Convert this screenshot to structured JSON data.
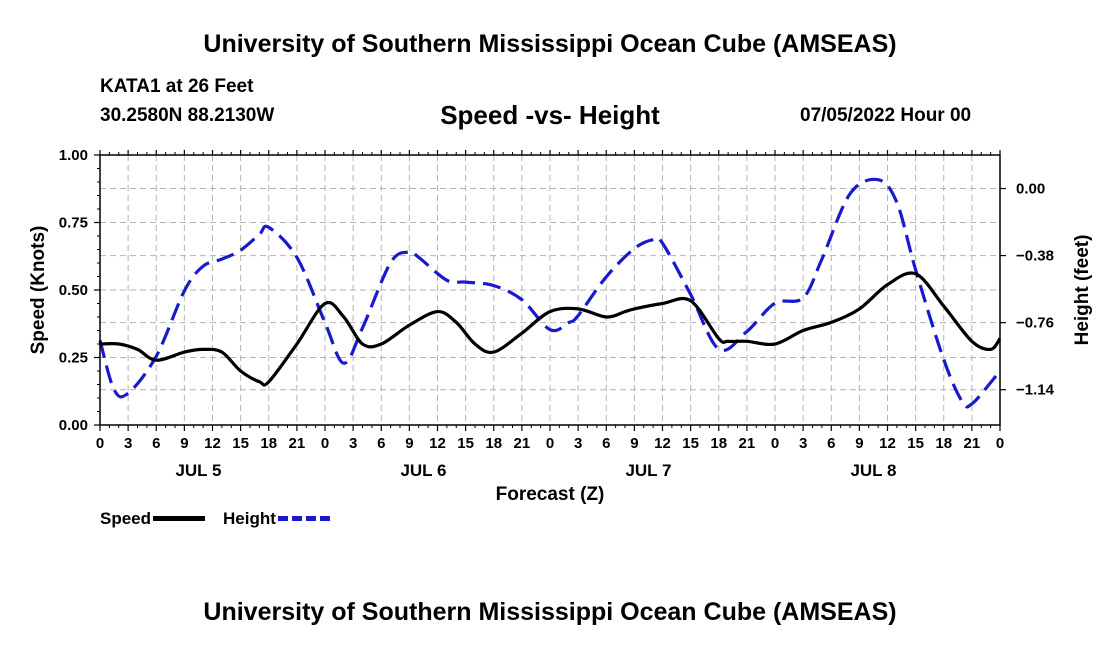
{
  "header": {
    "title": "University of Southern Mississippi Ocean Cube (AMSEAS)",
    "station": "KATA1 at 26 Feet",
    "coords": "30.2580N  88.2130W",
    "datetime": "07/05/2022 Hour 00"
  },
  "footer": {
    "title": "University of Southern Mississippi Ocean Cube (AMSEAS)"
  },
  "legend": {
    "speed_label": "Speed",
    "height_label": "Height"
  },
  "chart_data": {
    "type": "line",
    "title": "Speed -vs- Height",
    "xlabel": "Forecast (Z)",
    "ylabel": "Speed (Knots)",
    "ylabel_right": "Height (feet)",
    "ylim": [
      0,
      1
    ],
    "ylim_right": [
      -1.34,
      0.19
    ],
    "xlim_hours": [
      0,
      96
    ],
    "grid": true,
    "x_tick_hours": [
      0,
      3,
      6,
      9,
      12,
      15,
      18,
      21,
      24,
      27,
      30,
      33,
      36,
      39,
      42,
      45,
      48,
      51,
      54,
      57,
      60,
      63,
      66,
      69,
      72,
      75,
      78,
      81,
      84,
      87,
      90,
      93,
      96
    ],
    "x_tick_labels": [
      "0",
      "3",
      "6",
      "9",
      "12",
      "15",
      "18",
      "21",
      "0",
      "3",
      "6",
      "9",
      "12",
      "15",
      "18",
      "21",
      "0",
      "3",
      "6",
      "9",
      "12",
      "15",
      "18",
      "21",
      "0",
      "3",
      "6",
      "9",
      "12",
      "15",
      "18",
      "21",
      "0"
    ],
    "day_labels": [
      {
        "label": "JUL 5",
        "hour": 10.5
      },
      {
        "label": "JUL 6",
        "hour": 34.5
      },
      {
        "label": "JUL 7",
        "hour": 58.5
      },
      {
        "label": "JUL 8",
        "hour": 82.5
      }
    ],
    "y_ticks_left": [
      0.0,
      0.25,
      0.5,
      0.75,
      1.0
    ],
    "y_tick_labels_left": [
      "0.00",
      "0.25",
      "0.50",
      "0.75",
      "1.00"
    ],
    "y_ticks_right": [
      -1.14,
      -0.76,
      -0.38,
      0.0
    ],
    "y_tick_labels_right": [
      "−1.14",
      "−0.76",
      "−0.38",
      "0.00"
    ],
    "series": [
      {
        "name": "Speed",
        "axis": "left",
        "color": "#000000",
        "style": "solid",
        "x": [
          0,
          2,
          4,
          6,
          9,
          11,
          13,
          15,
          17,
          18,
          21,
          24,
          26,
          28,
          30,
          33,
          36,
          38,
          40,
          42,
          45,
          48,
          51,
          54,
          56,
          57,
          60,
          63,
          66,
          67,
          69,
          72,
          75,
          78,
          81,
          84,
          87,
          90,
          93,
          95,
          96
        ],
        "values": [
          0.3,
          0.3,
          0.28,
          0.24,
          0.27,
          0.28,
          0.27,
          0.2,
          0.16,
          0.16,
          0.3,
          0.45,
          0.4,
          0.3,
          0.3,
          0.37,
          0.42,
          0.38,
          0.3,
          0.27,
          0.34,
          0.42,
          0.43,
          0.4,
          0.42,
          0.43,
          0.45,
          0.46,
          0.32,
          0.31,
          0.31,
          0.3,
          0.35,
          0.38,
          0.43,
          0.52,
          0.56,
          0.44,
          0.31,
          0.28,
          0.32
        ]
      },
      {
        "name": "Height",
        "axis": "right",
        "color": "#1a1acd",
        "style": "dashed",
        "x": [
          0,
          1.5,
          3,
          6,
          9,
          11,
          13,
          15,
          17,
          18,
          21,
          24,
          26,
          28,
          31,
          33,
          34,
          37,
          39,
          42,
          45,
          48,
          50,
          51,
          54,
          57,
          59,
          60,
          63,
          66,
          69,
          72,
          75,
          77,
          80,
          83,
          85,
          87,
          90,
          92,
          93,
          95,
          96
        ],
        "values": [
          -0.86,
          -1.14,
          -1.16,
          -0.95,
          -0.58,
          -0.44,
          -0.4,
          -0.35,
          -0.26,
          -0.22,
          -0.39,
          -0.76,
          -0.99,
          -0.79,
          -0.42,
          -0.36,
          -0.39,
          -0.52,
          -0.53,
          -0.55,
          -0.63,
          -0.8,
          -0.76,
          -0.72,
          -0.5,
          -0.34,
          -0.29,
          -0.31,
          -0.6,
          -0.91,
          -0.81,
          -0.65,
          -0.62,
          -0.4,
          -0.03,
          0.05,
          -0.08,
          -0.46,
          -0.97,
          -1.21,
          -1.22,
          -1.1,
          -1.03
        ]
      }
    ]
  }
}
